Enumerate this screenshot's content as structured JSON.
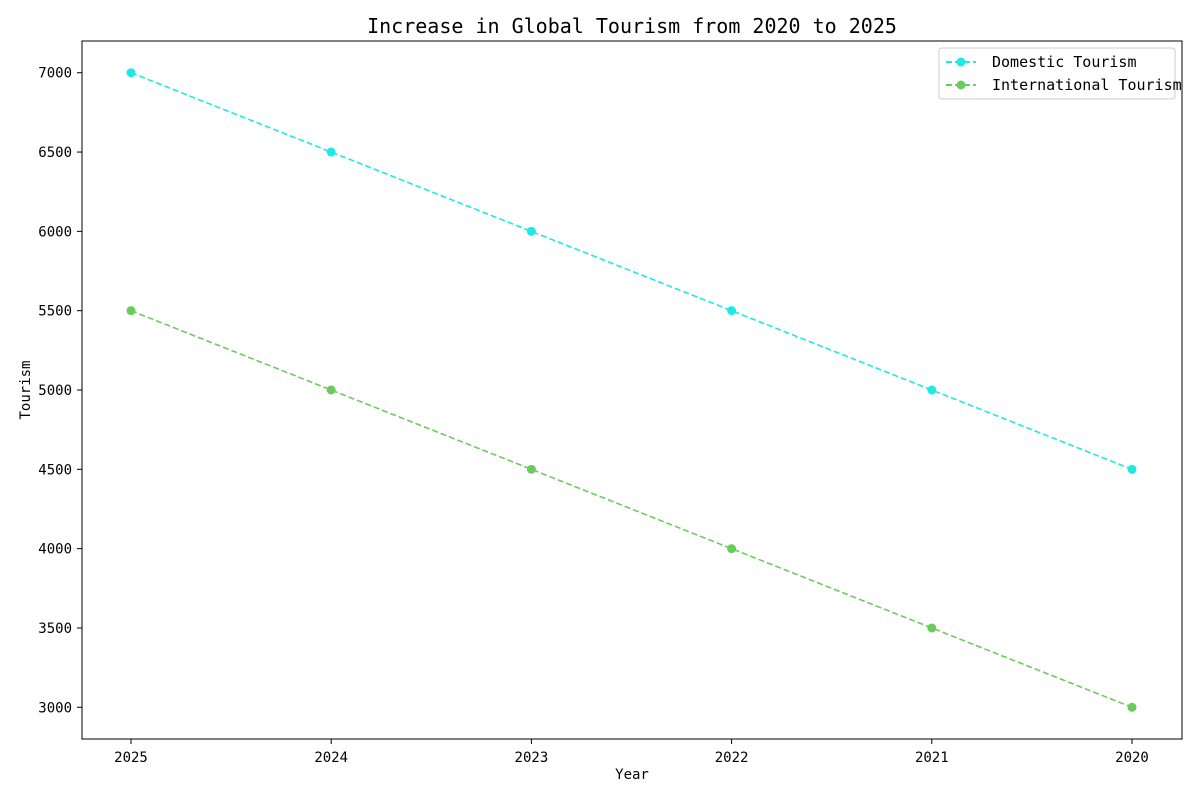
{
  "chart_data": {
    "type": "line",
    "title": "Increase in Global Tourism from 2020 to 2025",
    "xlabel": "Year",
    "ylabel": "Tourism",
    "categories": [
      "2025",
      "2024",
      "2023",
      "2022",
      "2021",
      "2020"
    ],
    "y_ticks": [
      3000,
      3500,
      4000,
      4500,
      5000,
      5500,
      6000,
      6500,
      7000
    ],
    "ylim": [
      2800,
      7200
    ],
    "grid": false,
    "legend_position": "top-right",
    "series": [
      {
        "name": "Domestic Tourism",
        "color": "#1de9e6",
        "line_style": "dashed",
        "marker": "circle",
        "values": [
          7000,
          6500,
          6000,
          5500,
          5000,
          4500
        ]
      },
      {
        "name": "International Tourism",
        "color": "#6ccb5f",
        "line_style": "dashed",
        "marker": "circle",
        "values": [
          5500,
          5000,
          4500,
          4000,
          3500,
          3000
        ]
      }
    ]
  }
}
